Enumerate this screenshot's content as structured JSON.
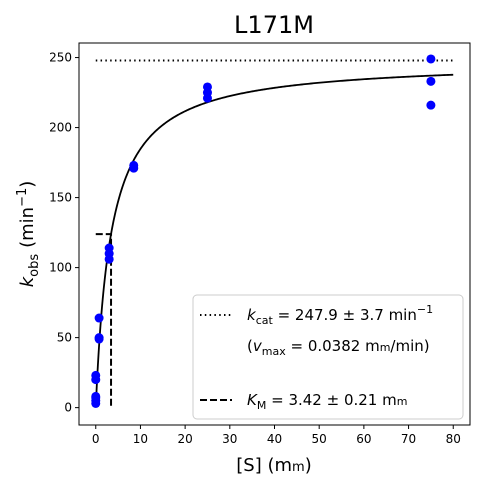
{
  "chart_data": {
    "type": "scatter",
    "title": "L171M",
    "xlabel": {
      "main": "[S] (m",
      "sc": "m",
      "end": ")"
    },
    "ylabel": {
      "k": "k",
      "sub": "obs",
      "open": "(min",
      "sup": "−1",
      "close": ")"
    },
    "xlim": [
      -3.75,
      83.75
    ],
    "ylim": [
      -12.4,
      260.4
    ],
    "x_ticks": [
      0,
      10,
      20,
      30,
      40,
      50,
      60,
      70,
      80
    ],
    "y_ticks": [
      0,
      50,
      100,
      150,
      200,
      250
    ],
    "grid": false,
    "colors": {
      "points": "#0000ff",
      "lines": "#000000"
    },
    "points": [
      {
        "x": 0,
        "y": 3
      },
      {
        "x": 0,
        "y": 5
      },
      {
        "x": 0,
        "y": 7
      },
      {
        "x": 0,
        "y": 8
      },
      {
        "x": 0,
        "y": 20
      },
      {
        "x": 0,
        "y": 23
      },
      {
        "x": 0.75,
        "y": 49
      },
      {
        "x": 0.75,
        "y": 50
      },
      {
        "x": 0.75,
        "y": 64
      },
      {
        "x": 3,
        "y": 106
      },
      {
        "x": 3,
        "y": 110
      },
      {
        "x": 3,
        "y": 114
      },
      {
        "x": 8.5,
        "y": 171
      },
      {
        "x": 8.5,
        "y": 173
      },
      {
        "x": 25,
        "y": 221
      },
      {
        "x": 25,
        "y": 225
      },
      {
        "x": 25,
        "y": 229
      },
      {
        "x": 75,
        "y": 216
      },
      {
        "x": 75,
        "y": 233
      },
      {
        "x": 75,
        "y": 249
      }
    ],
    "fit": {
      "kcat": 247.9,
      "km": 3.42,
      "x_start": 0,
      "x_end": 80
    },
    "kcat_line": {
      "y": 247.9,
      "x_start": 0,
      "x_end": 80
    },
    "km_marker": {
      "x": 3.42,
      "y": 123.95,
      "x_start": 0
    },
    "legend": {
      "position": "lower-right",
      "kcat": {
        "k": "k",
        "sub": "cat",
        "text": " = 247.9 ± 3.7 min",
        "sup": "−1"
      },
      "vmax": {
        "open": "(",
        "v": "v",
        "sub": "max",
        "text": " = 0.0382 m",
        "sc": "m",
        "end": "/min)"
      },
      "km": {
        "k": "K",
        "sub": "M",
        "text": " = 3.42 ± 0.21 m",
        "sc": "m"
      }
    }
  }
}
